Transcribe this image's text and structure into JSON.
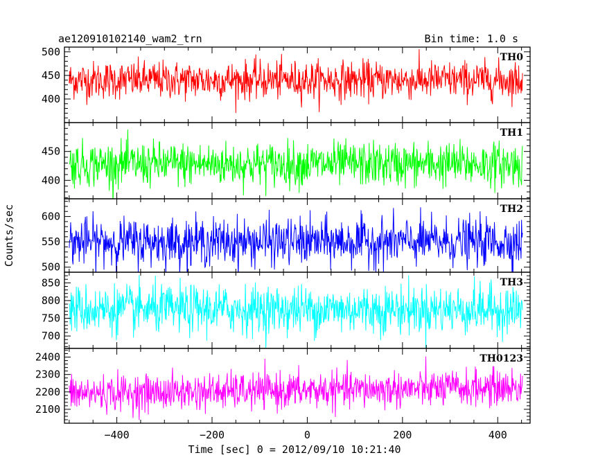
{
  "header": {
    "left": "ae120910102140_wam2_trn",
    "right": "Bin time: 1.0 s"
  },
  "chart_data": {
    "type": "line",
    "xlabel": "Time [sec] 0 = 2012/09/10 10:21:40",
    "ylabel": "Counts/sec",
    "xlim": [
      -510,
      468
    ],
    "xticks": [
      -400,
      -200,
      0,
      200,
      400
    ],
    "x_range": [
      -500,
      452
    ],
    "bin_time": 1.0,
    "grid": false,
    "panels": [
      {
        "name": "TH0",
        "color": "#ff0000",
        "ylim": [
          350,
          510
        ],
        "yticks": [
          400,
          450,
          500
        ],
        "mean": 440,
        "spread": 20
      },
      {
        "name": "TH1",
        "color": "#00ff00",
        "ylim": [
          368,
          500
        ],
        "yticks": [
          400,
          450
        ],
        "mean": 428,
        "spread": 19
      },
      {
        "name": "TH2",
        "color": "#0000ff",
        "ylim": [
          490,
          635
        ],
        "yticks": [
          500,
          550,
          600
        ],
        "mean": 550,
        "spread": 23
      },
      {
        "name": "TH3",
        "color": "#00ffff",
        "ylim": [
          665,
          880
        ],
        "yticks": [
          700,
          750,
          800,
          850
        ],
        "mean": 775,
        "spread": 34
      },
      {
        "name": "TH0123",
        "color": "#ff00ff",
        "ylim": [
          2020,
          2450
        ],
        "yticks": [
          2100,
          2200,
          2300,
          2400
        ],
        "mean": 2190,
        "spread": 52
      }
    ]
  }
}
